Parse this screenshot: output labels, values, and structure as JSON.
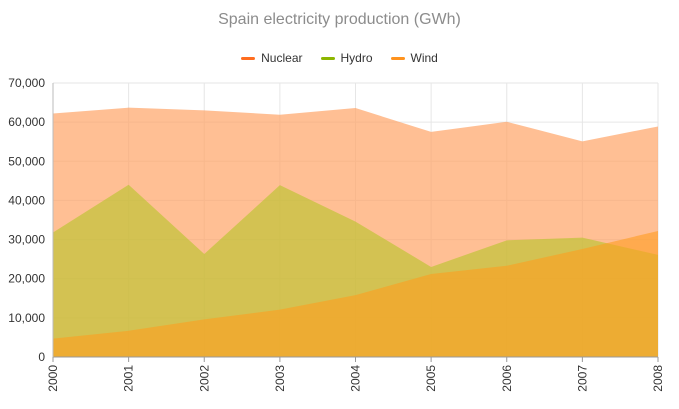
{
  "chart_data": {
    "type": "area",
    "title": "Spain electricity production (GWh)",
    "xlabel": "",
    "ylabel": "",
    "categories": [
      "2000",
      "2001",
      "2002",
      "2003",
      "2004",
      "2005",
      "2006",
      "2007",
      "2008"
    ],
    "ylim": [
      0,
      70000
    ],
    "yticks": [
      0,
      10000,
      20000,
      30000,
      40000,
      50000,
      60000,
      70000
    ],
    "ytick_labels": [
      "0",
      "10,000",
      "20,000",
      "30,000",
      "40,000",
      "50,000",
      "60,000",
      "70,000"
    ],
    "grid": true,
    "legend_position": "top",
    "series": [
      {
        "name": "Nuclear",
        "color": "#ff6d1f",
        "fill": "#ffa467",
        "fill_opacity": 0.7,
        "values": [
          62200,
          63700,
          63000,
          61900,
          63600,
          57500,
          60100,
          55100,
          58900
        ]
      },
      {
        "name": "Hydro",
        "color": "#8db600",
        "fill": "#b5c427",
        "fill_opacity": 0.6,
        "values": [
          31800,
          44000,
          26300,
          43900,
          34600,
          23000,
          29800,
          30500,
          26100
        ]
      },
      {
        "name": "Wind",
        "color": "#ff931e",
        "fill": "#ff9c1f",
        "fill_opacity": 0.6,
        "values": [
          4700,
          6700,
          9600,
          12100,
          15800,
          21200,
          23300,
          27600,
          32200
        ]
      }
    ]
  }
}
